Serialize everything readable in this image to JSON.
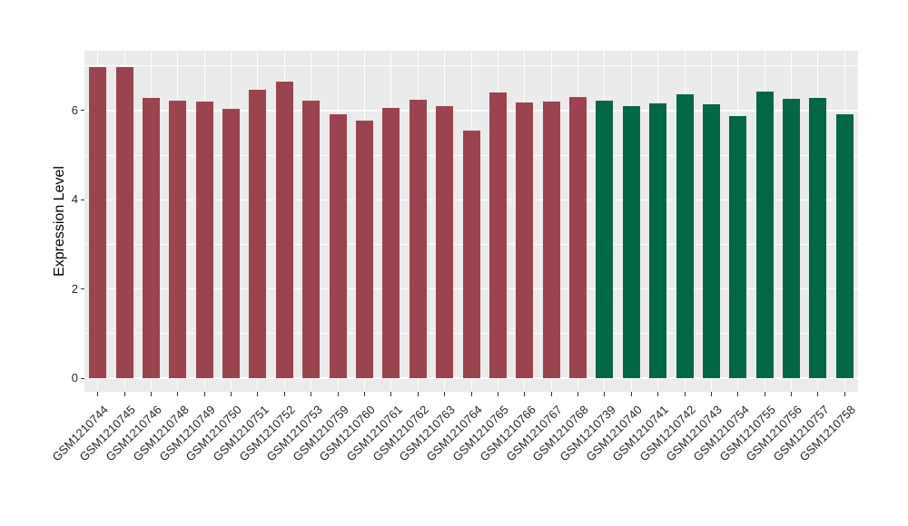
{
  "chart_data": {
    "type": "bar",
    "title": "",
    "xlabel": "",
    "ylabel": "Expression Level",
    "ylim": [
      0,
      7.35
    ],
    "yticks": [
      "0",
      "2",
      "4",
      "6"
    ],
    "ytick_values": [
      0,
      2,
      4,
      6
    ],
    "minor_gridline_values": [
      1,
      3,
      5,
      7
    ],
    "grid": true,
    "legend_position": "none",
    "categories": [
      "GSM1210744",
      "GSM1210745",
      "GSM1210746",
      "GSM1210748",
      "GSM1210749",
      "GSM1210750",
      "GSM1210751",
      "GSM1210752",
      "GSM1210753",
      "GSM1210759",
      "GSM1210760",
      "GSM1210761",
      "GSM1210762",
      "GSM1210763",
      "GSM1210764",
      "GSM1210765",
      "GSM1210766",
      "GSM1210767",
      "GSM1210768",
      "GSM1210739",
      "GSM1210740",
      "GSM1210741",
      "GSM1210742",
      "GSM1210743",
      "GSM1210754",
      "GSM1210755",
      "GSM1210756",
      "GSM1210757",
      "GSM1210758"
    ],
    "values": [
      6.97,
      6.97,
      6.28,
      6.23,
      6.2,
      6.05,
      6.46,
      6.66,
      6.23,
      5.92,
      5.77,
      6.06,
      6.24,
      6.1,
      5.55,
      6.4,
      6.18,
      6.2,
      6.3,
      6.22,
      6.1,
      6.16,
      6.36,
      6.14,
      5.87,
      6.42,
      6.26,
      6.28,
      5.92
    ],
    "group_of_bar": [
      "A",
      "A",
      "A",
      "A",
      "A",
      "A",
      "A",
      "A",
      "A",
      "A",
      "A",
      "A",
      "A",
      "A",
      "A",
      "A",
      "A",
      "A",
      "A",
      "B",
      "B",
      "B",
      "B",
      "B",
      "B",
      "B",
      "B",
      "B",
      "B"
    ],
    "group_colors": {
      "A": "#9B4450",
      "B": "#016744"
    }
  },
  "colors": {
    "panel_background": "#EBEBEB",
    "gridline": "#FFFFFF",
    "axis_text": "#262626",
    "tick_mark": "#333333",
    "figure_background": "#FFFFFF"
  }
}
